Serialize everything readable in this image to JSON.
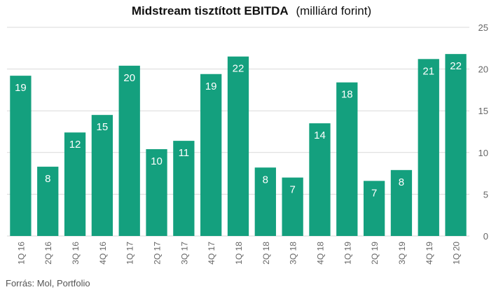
{
  "title": "Midstream tisztított EBITDA",
  "unit": "(milliárd forint)",
  "source": "Forrás: Mol, Portfolio",
  "colors": {
    "bar": "#14a07e",
    "grid": "#d9d9d9",
    "tick": "#666666",
    "label": "#ffffff"
  },
  "chart_data": {
    "type": "bar",
    "title": "Midstream tisztított EBITDA",
    "subtitle": "(milliárd forint)",
    "categories": [
      "1Q 16",
      "2Q 16",
      "3Q 16",
      "4Q 16",
      "1Q 17",
      "2Q 17",
      "3Q 17",
      "4Q 17",
      "1Q 18",
      "2Q 18",
      "3Q 18",
      "4Q 18",
      "1Q 19",
      "2Q 19",
      "3Q 19",
      "4Q 19",
      "1Q 20"
    ],
    "values": [
      19.2,
      8.3,
      12.4,
      14.5,
      20.4,
      10.4,
      11.4,
      19.4,
      21.5,
      8.2,
      7.0,
      13.5,
      18.4,
      6.6,
      7.9,
      21.2,
      21.8
    ],
    "data_labels": [
      "19",
      "8",
      "12",
      "15",
      "20",
      "10",
      "11",
      "19",
      "22",
      "8",
      "7",
      "14",
      "18",
      "7",
      "8",
      "21",
      "22"
    ],
    "y_ticks": [
      "0",
      "5",
      "10",
      "15",
      "20",
      "25"
    ],
    "ylim": [
      0,
      25
    ],
    "y_axis_side": "right",
    "grid": true,
    "xlabel": "",
    "ylabel": ""
  }
}
